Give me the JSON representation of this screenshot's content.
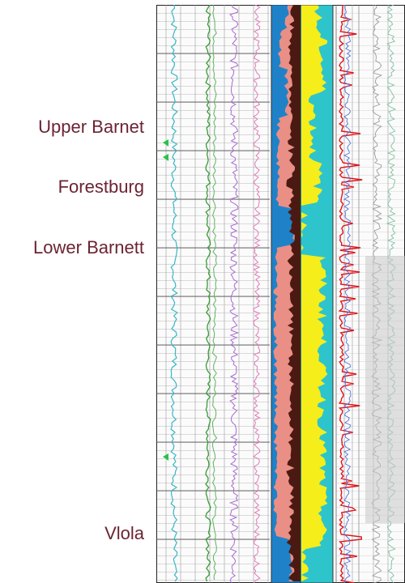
{
  "formations": [
    {
      "name": "Upper Barnet"
    },
    {
      "name": "Forestburg"
    },
    {
      "name": "Lower Barnett"
    },
    {
      "name": "Vlola"
    }
  ],
  "colors": {
    "label": "#6b2431",
    "shale_pink": "#ea8f86",
    "carbonate_blue": "#1f82c9",
    "quartz_yellow": "#f5ee1a",
    "cyan": "#2ec4cc",
    "dark_brown": "#4a1a12",
    "curve_red": "#e0131a"
  }
}
